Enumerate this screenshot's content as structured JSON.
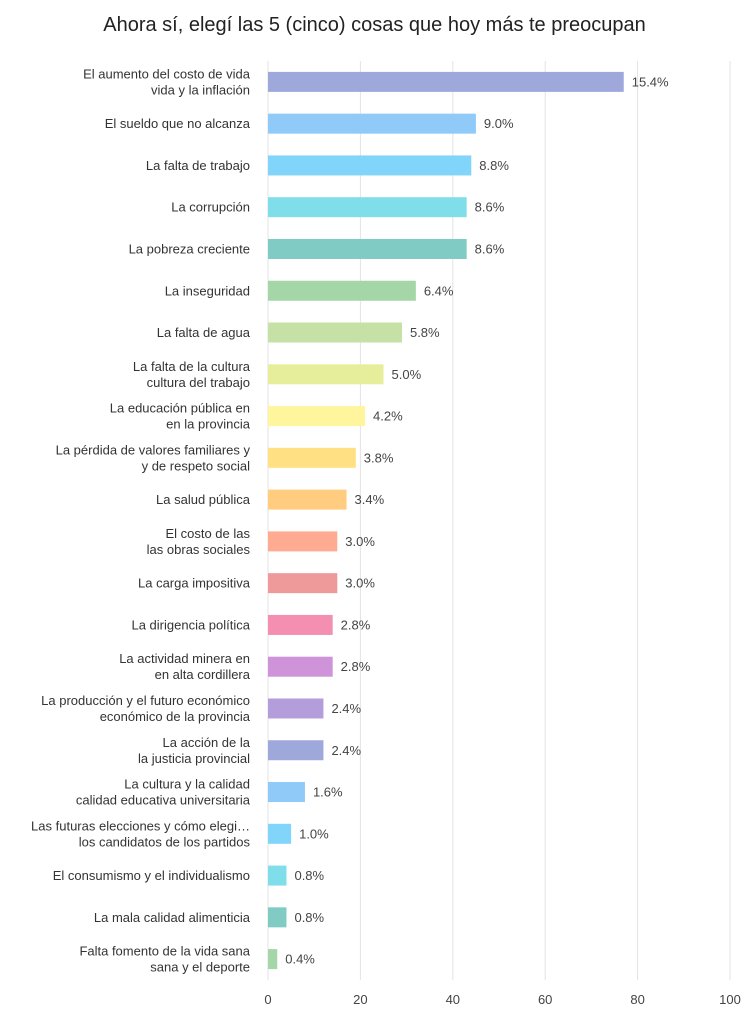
{
  "chart_data": {
    "type": "bar",
    "orientation": "horizontal",
    "title": "Ahora sí, elegí las 5 (cinco) cosas que hoy más te preocupan",
    "xlabel": "",
    "ylabel": "",
    "xlim": [
      0,
      100
    ],
    "xticks": [
      "0",
      "20",
      "40",
      "60",
      "80",
      "100"
    ],
    "grid": true,
    "categories": [
      [
        "El aumento del costo de vida",
        "vida y la inflación"
      ],
      [
        "El sueldo que no alcanza"
      ],
      [
        "La falta de trabajo"
      ],
      [
        "La corrupción"
      ],
      [
        "La pobreza creciente"
      ],
      [
        "La inseguridad"
      ],
      [
        "La falta de agua"
      ],
      [
        "La falta de la cultura",
        "cultura del trabajo"
      ],
      [
        "La educación pública en",
        "en la provincia"
      ],
      [
        "La pérdida de valores familiares y",
        "y de respeto social"
      ],
      [
        "La salud pública"
      ],
      [
        "El costo de las",
        "las obras sociales"
      ],
      [
        "La carga impositiva"
      ],
      [
        "La dirigencia política"
      ],
      [
        "La actividad minera en",
        "en alta cordillera"
      ],
      [
        "La producción y el futuro económico",
        "económico de la provincia"
      ],
      [
        "La acción de la",
        "la justicia provincial"
      ],
      [
        "La cultura y la calidad",
        "calidad educativa universitaria"
      ],
      [
        "Las futuras elecciones y cómo elegi…",
        "los candidatos de los partidos"
      ],
      [
        "El consumismo y el individualismo"
      ],
      [
        "La mala calidad alimenticia"
      ],
      [
        "Falta fomento de la vida sana",
        "sana y el deporte"
      ]
    ],
    "values": [
      77,
      45,
      44,
      43,
      43,
      32,
      29,
      25,
      21,
      19,
      17,
      15,
      15,
      14,
      14,
      12,
      12,
      8,
      5,
      4,
      4,
      2
    ],
    "value_labels": [
      "15.4%",
      "9.0%",
      "8.8%",
      "8.6%",
      "8.6%",
      "6.4%",
      "5.8%",
      "5.0%",
      "4.2%",
      "3.8%",
      "3.4%",
      "3.0%",
      "3.0%",
      "2.8%",
      "2.8%",
      "2.4%",
      "2.4%",
      "1.6%",
      "1.0%",
      "0.8%",
      "0.8%",
      "0.4%"
    ],
    "colors": [
      "#9fa8da",
      "#90caf9",
      "#81d4fa",
      "#80deea",
      "#80cbc4",
      "#a5d6a7",
      "#c5e1a5",
      "#e6ee9c",
      "#fff59d",
      "#ffe082",
      "#ffcc80",
      "#ffab91",
      "#ef9a9a",
      "#f48fb1",
      "#ce93d8",
      "#b39ddb",
      "#9fa8da",
      "#90caf9",
      "#81d4fa",
      "#80deea",
      "#80cbc4",
      "#a5d6a7"
    ]
  }
}
